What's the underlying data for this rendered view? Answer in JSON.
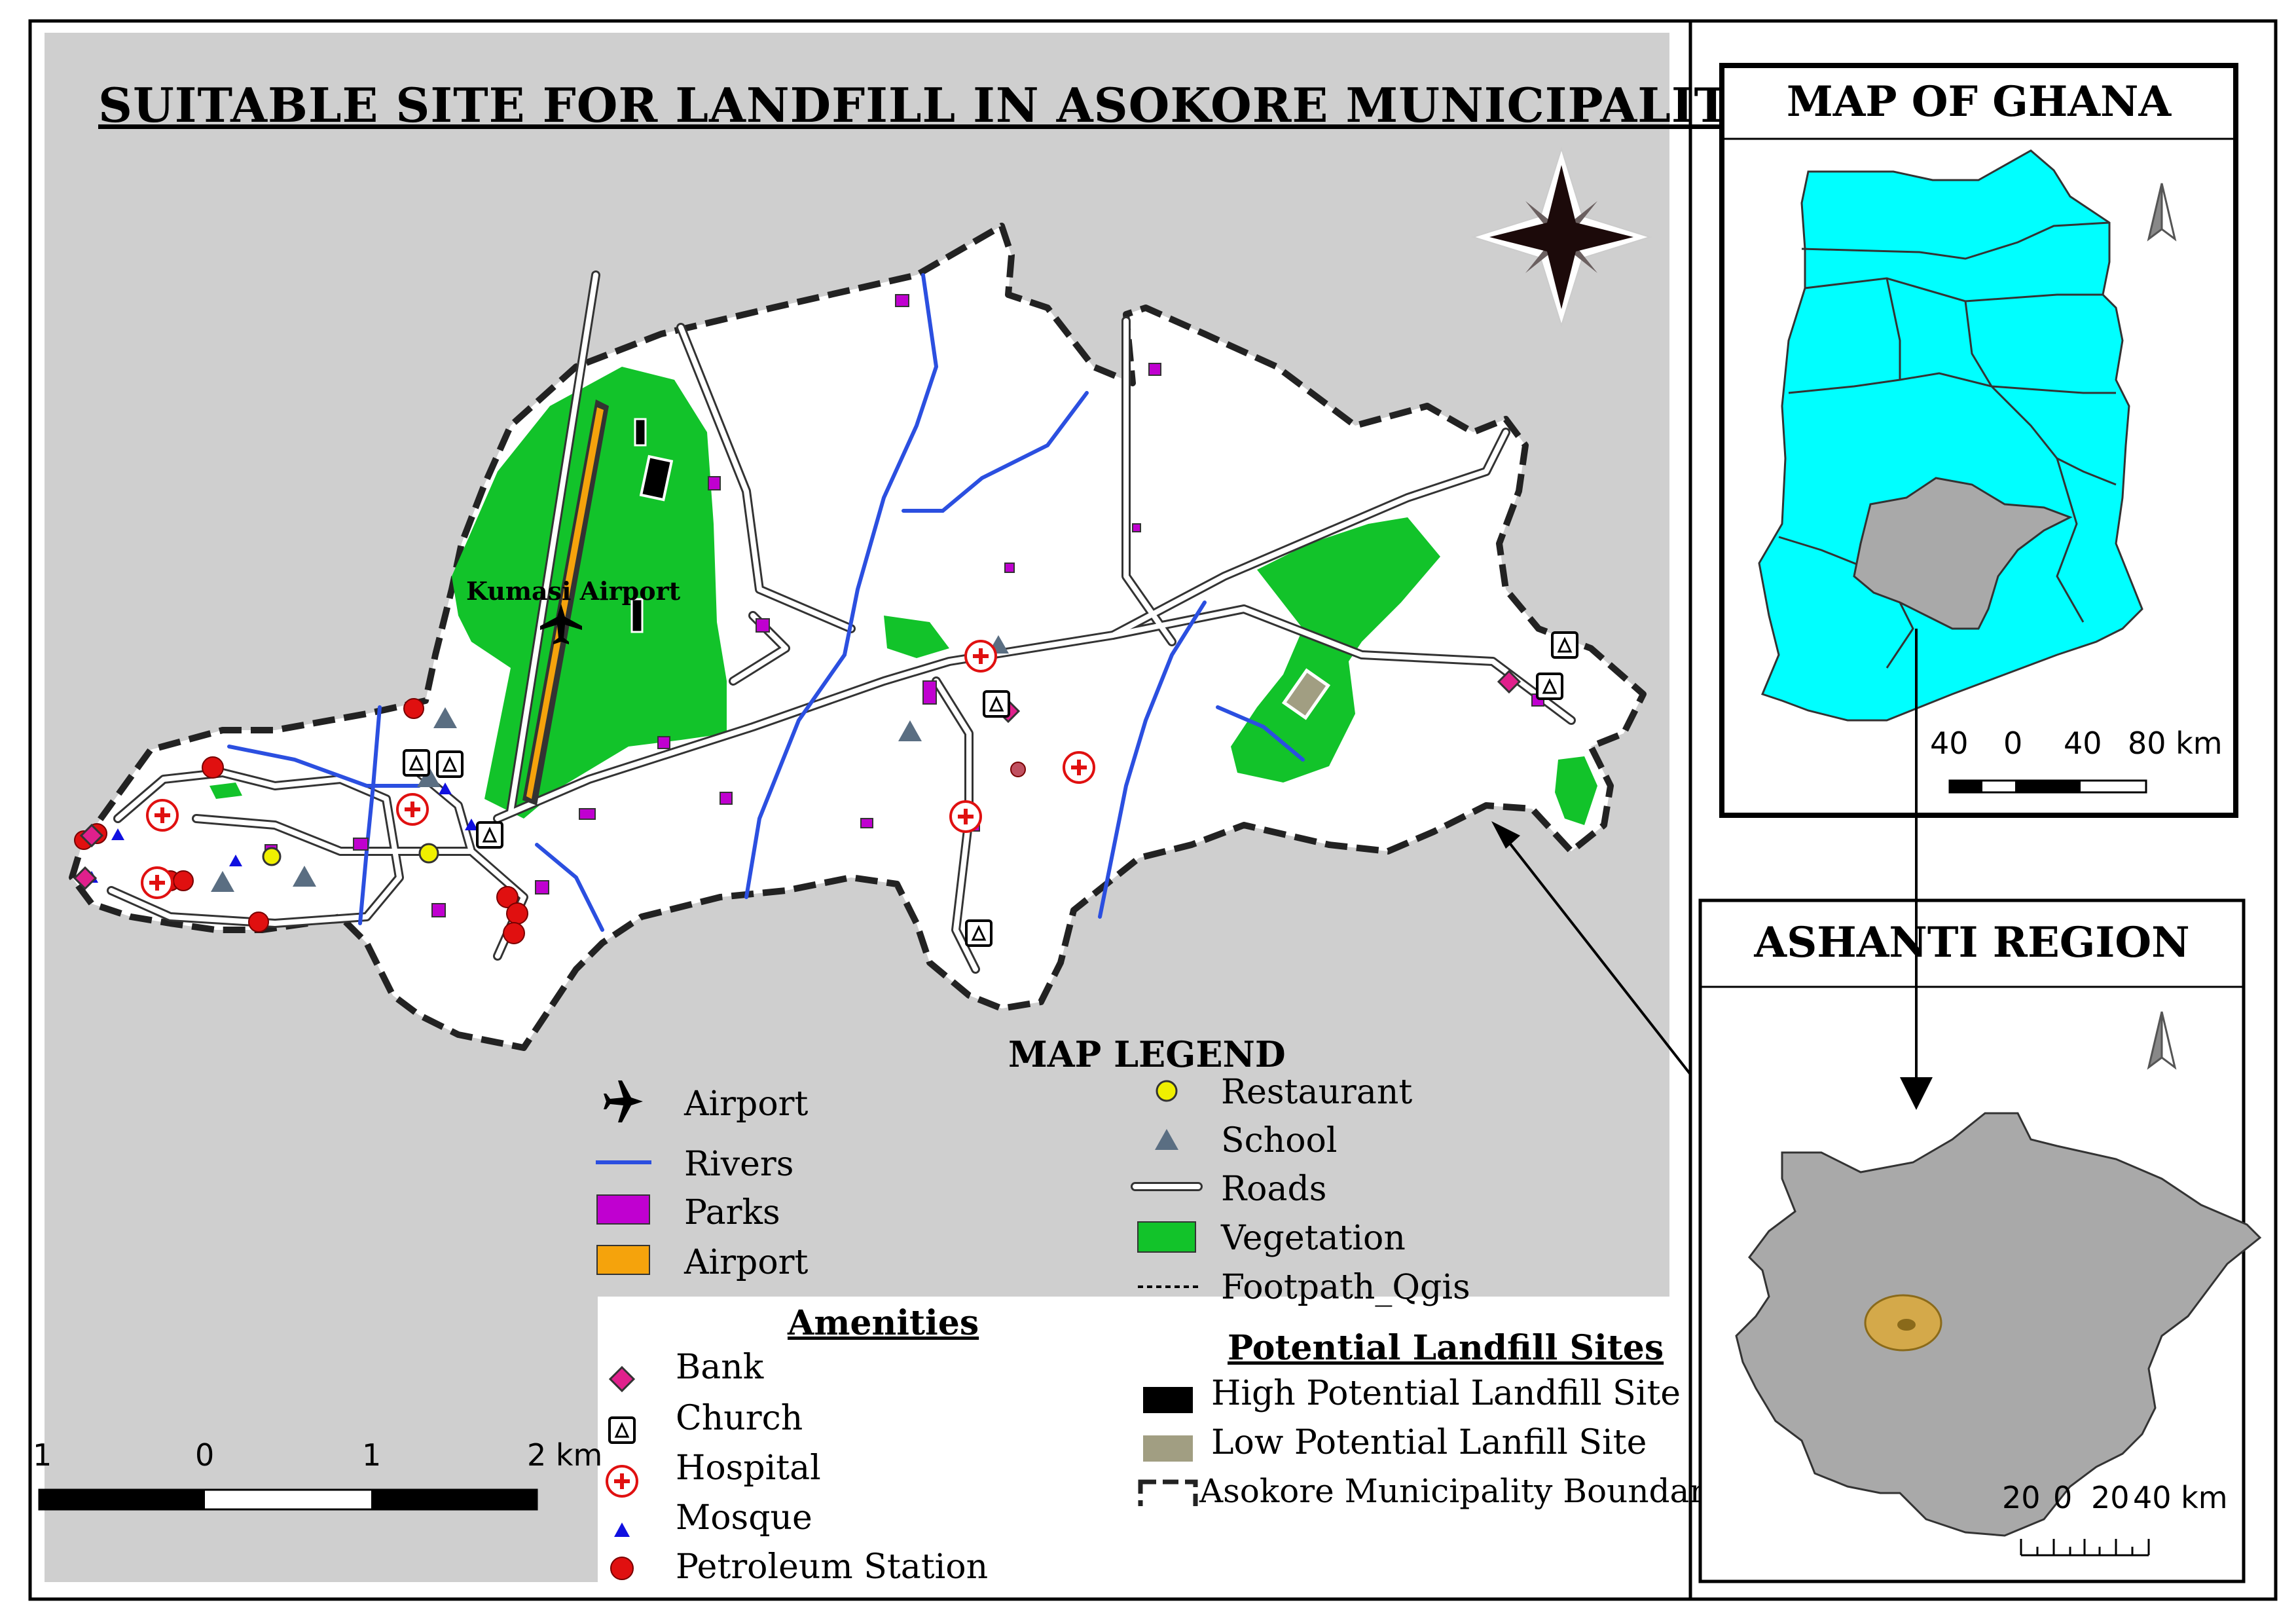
{
  "title": "SUITABLE  SITE FOR LANDFILL IN ASOKORE MUNICIPALITY",
  "map_label_airport": "Kumasi Airport",
  "inset_ghana": {
    "title": "MAP OF GHANA",
    "scale_labels": [
      "40",
      "0",
      "40",
      "80 km"
    ],
    "fill_color": "#00ffff",
    "highlight_color": "#a9a9a9"
  },
  "inset_ashanti": {
    "title": "ASHANTI REGION",
    "scale_labels": [
      "20",
      "0",
      "20",
      "40 km"
    ],
    "fill_color": "#a9a9a9",
    "highlight_color": "#d4a94a"
  },
  "main_scale_labels": [
    "1",
    "0",
    "1",
    "2 km"
  ],
  "legend": {
    "title": "MAP   LEGEND",
    "items_left": [
      {
        "label": "Airport",
        "icon": "airplane-icon"
      },
      {
        "label": "Rivers",
        "icon": "river-line"
      },
      {
        "label": "Parks",
        "icon": "park-swatch",
        "color": "#c000d0"
      },
      {
        "label": "Airport",
        "icon": "airport-swatch",
        "color": "#f5a30c"
      }
    ],
    "amenities_title": "Amenities",
    "amenities": [
      {
        "label": "Bank",
        "icon": "bank-icon",
        "color": "#e0208c"
      },
      {
        "label": "Church",
        "icon": "church-icon"
      },
      {
        "label": "Hospital",
        "icon": "hospital-icon",
        "color": "#e01010"
      },
      {
        "label": "Mosque",
        "icon": "mosque-icon",
        "color": "#1010e0"
      },
      {
        "label": "Petroleum Station",
        "icon": "petroleum-icon",
        "color": "#e01010"
      }
    ],
    "items_right": [
      {
        "label": "Restaurant",
        "icon": "restaurant-icon",
        "color": "#f0f000"
      },
      {
        "label": "School",
        "icon": "school-icon",
        "color": "#5a6e82"
      },
      {
        "label": "Roads",
        "icon": "road-line"
      },
      {
        "label": "Vegetation",
        "icon": "vegetation-swatch",
        "color": "#12c32a"
      },
      {
        "label": "Footpath_Qgis",
        "icon": "footpath-line"
      }
    ],
    "landfill_title": "Potential Landfill Sites",
    "landfill_items": [
      {
        "label": "High Potential Landfill Site",
        "icon": "high-landfill-swatch",
        "color": "#000000"
      },
      {
        "label": "Low Potential Lanfill Site",
        "icon": "low-landfill-swatch",
        "color": "#a19e82"
      },
      {
        "label": "Asokore Municipality Boundary",
        "icon": "boundary-swatch"
      }
    ]
  },
  "colors": {
    "background_gray": "#cfcfcf",
    "river": "#2b4fe0",
    "park": "#c000d0",
    "vegetation": "#12c32a",
    "airport": "#f5a30c"
  }
}
